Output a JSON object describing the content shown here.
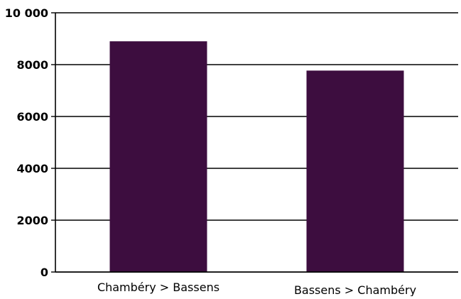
{
  "chart_data": {
    "type": "bar",
    "categories": [
      "Chambéry > Bassens",
      "Bassens > Chambéry"
    ],
    "values": [
      8900,
      7770
    ],
    "ylim": [
      0,
      10000
    ],
    "yticks": [
      0,
      2000,
      4000,
      6000,
      8000,
      10000
    ],
    "ytick_labels": [
      "0",
      "2000",
      "4000",
      "6000",
      "8000",
      "10 000"
    ],
    "title": "",
    "xlabel": "",
    "ylabel": "",
    "grid": true,
    "legend": "none",
    "bar_color": "#3d0d3f",
    "axis_color": "#000000",
    "grid_color": "#000000"
  }
}
